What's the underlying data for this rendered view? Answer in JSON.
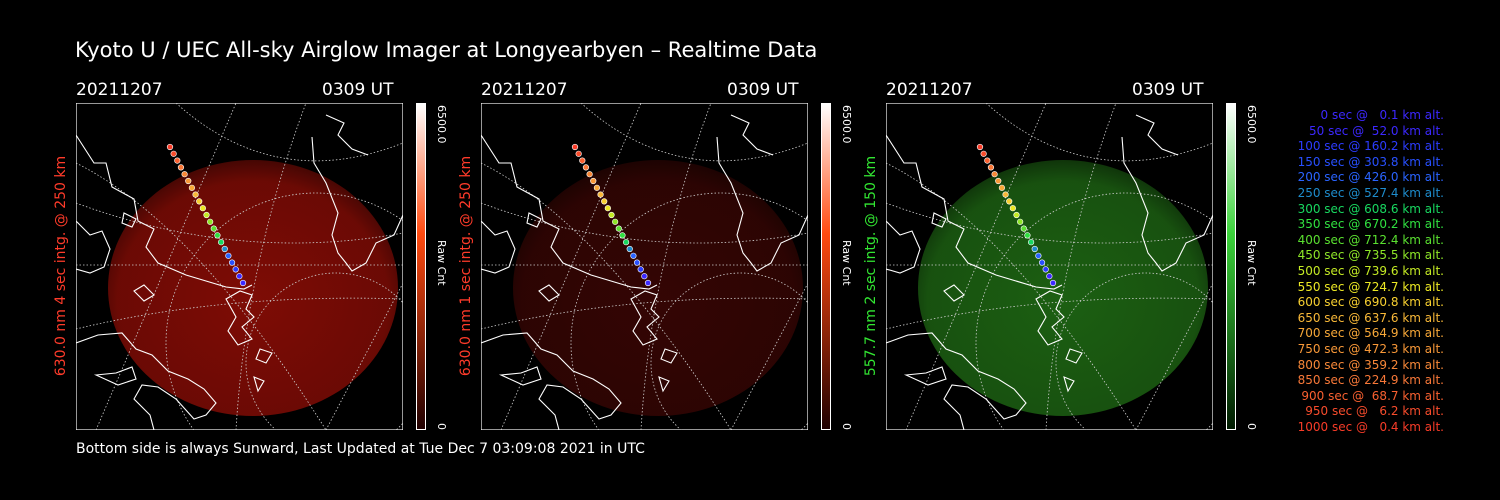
{
  "title": "Kyoto U / UEC All-sky Airglow Imager at Longyearbyen – Realtime Data",
  "footer": "Bottom side is always Sunward, Last Updated at Tue Dec  7 03:09:08 2021 in UTC",
  "panels": [
    {
      "date": "20211207",
      "time": "0309 UT",
      "ylabel": "630.0 nm 4 sec intg. @ 250 km",
      "label_color": "#ff3b2a",
      "glow_color": "#8c0d06",
      "glow_intensity": 0.9,
      "colorbar": {
        "max": "6500.0",
        "min": "0",
        "unit": "Raw Cnt",
        "top_color": "#ffffff",
        "mid_color": "#ff4a10",
        "bottom_color": "#200000"
      }
    },
    {
      "date": "20211207",
      "time": "0309 UT",
      "ylabel": "630.0 nm 1 sec intg. @ 250 km",
      "label_color": "#ff3b2a",
      "glow_color": "#3a0604",
      "glow_intensity": 0.9,
      "colorbar": {
        "max": "6500.0",
        "min": "0",
        "unit": "Raw Cnt",
        "top_color": "#ffffff",
        "mid_color": "#ff4a10",
        "bottom_color": "#200000"
      }
    },
    {
      "date": "20211207",
      "time": "0309 UT",
      "ylabel": "557.7 nm 2 sec intg. @ 150 km",
      "label_color": "#32e632",
      "glow_color": "#1f6a14",
      "glow_intensity": 0.9,
      "colorbar": {
        "max": "6500.0",
        "min": "0",
        "unit": "Raw Cnt",
        "top_color": "#ffffff",
        "mid_color": "#3ad23a",
        "bottom_color": "#001a00"
      }
    }
  ],
  "legend": [
    {
      "text": "0 sec @   0.1 km alt.",
      "color": "#3c28ff"
    },
    {
      "text": "50 sec @  52.0 km alt.",
      "color": "#3c28ff"
    },
    {
      "text": "100 sec @ 160.2 km alt.",
      "color": "#2c3cff"
    },
    {
      "text": "150 sec @ 303.8 km alt.",
      "color": "#2850ff"
    },
    {
      "text": "200 sec @ 426.0 km alt.",
      "color": "#2a64ff"
    },
    {
      "text": "250 sec @ 527.4 km alt.",
      "color": "#1e8ccc"
    },
    {
      "text": "300 sec @ 608.6 km alt.",
      "color": "#18d860"
    },
    {
      "text": "350 sec @ 670.2 km alt.",
      "color": "#30e040"
    },
    {
      "text": "400 sec @ 712.4 km alt.",
      "color": "#5ae030"
    },
    {
      "text": "450 sec @ 735.5 km alt.",
      "color": "#8ee628"
    },
    {
      "text": "500 sec @ 739.6 km alt.",
      "color": "#c4ea24"
    },
    {
      "text": "550 sec @ 724.7 km alt.",
      "color": "#ece824"
    },
    {
      "text": "600 sec @ 690.8 km alt.",
      "color": "#f8d030"
    },
    {
      "text": "650 sec @ 637.6 km alt.",
      "color": "#f8b838"
    },
    {
      "text": "700 sec @ 564.9 km alt.",
      "color": "#f8a838"
    },
    {
      "text": "750 sec @ 472.3 km alt.",
      "color": "#f89838"
    },
    {
      "text": "800 sec @ 359.2 km alt.",
      "color": "#f88838"
    },
    {
      "text": "850 sec @ 224.9 km alt.",
      "color": "#f87838"
    },
    {
      "text": "900 sec @  68.7 km alt.",
      "color": "#f86030"
    },
    {
      "text": "950 sec @   6.2 km alt.",
      "color": "#f84c2c"
    },
    {
      "text": "1000 sec @   0.4 km alt.",
      "color": "#f83c28"
    }
  ],
  "track_colors": [
    "#f83c28",
    "#f84c2c",
    "#f86030",
    "#f87838",
    "#f88838",
    "#f89838",
    "#f8a838",
    "#f8b838",
    "#f8d030",
    "#ece824",
    "#c4ea24",
    "#8ee628",
    "#5ae030",
    "#30e040",
    "#18d860",
    "#1e8ccc",
    "#2a64ff",
    "#2850ff",
    "#2c3cff",
    "#3c28ff",
    "#3c28ff"
  ]
}
